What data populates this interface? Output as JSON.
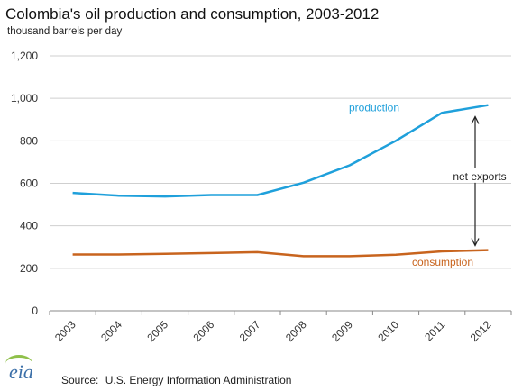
{
  "chart_data": {
    "type": "line",
    "title": "Colombia's oil production and consumption, 2003-2012",
    "subtitle": "thousand barrels per day",
    "x": [
      2003,
      2004,
      2005,
      2006,
      2007,
      2008,
      2009,
      2010,
      2011,
      2012
    ],
    "x_tick_labels": [
      "2003",
      "2004",
      "2005",
      "2006",
      "2007",
      "2008",
      "2009",
      "2010",
      "2011",
      "2012"
    ],
    "y_tick_labels": [
      "0",
      "200",
      "400",
      "600",
      "800",
      "1,000",
      "1,200"
    ],
    "y_ticks": [
      0,
      200,
      400,
      600,
      800,
      1000,
      1200
    ],
    "ylim": [
      0,
      1200
    ],
    "grid": "horizontal",
    "series": [
      {
        "name": "production",
        "color": "#1fa0db",
        "values": [
          555,
          542,
          538,
          545,
          545,
          603,
          685,
          800,
          932,
          968
        ]
      },
      {
        "name": "consumption",
        "color": "#c8641e",
        "values": [
          265,
          265,
          268,
          272,
          276,
          257,
          257,
          264,
          280,
          286
        ]
      }
    ],
    "annotation": "net exports"
  },
  "footer": {
    "logo_text": "eia",
    "source_label": "Source:",
    "source_text": "U.S. Energy Information Administration"
  }
}
